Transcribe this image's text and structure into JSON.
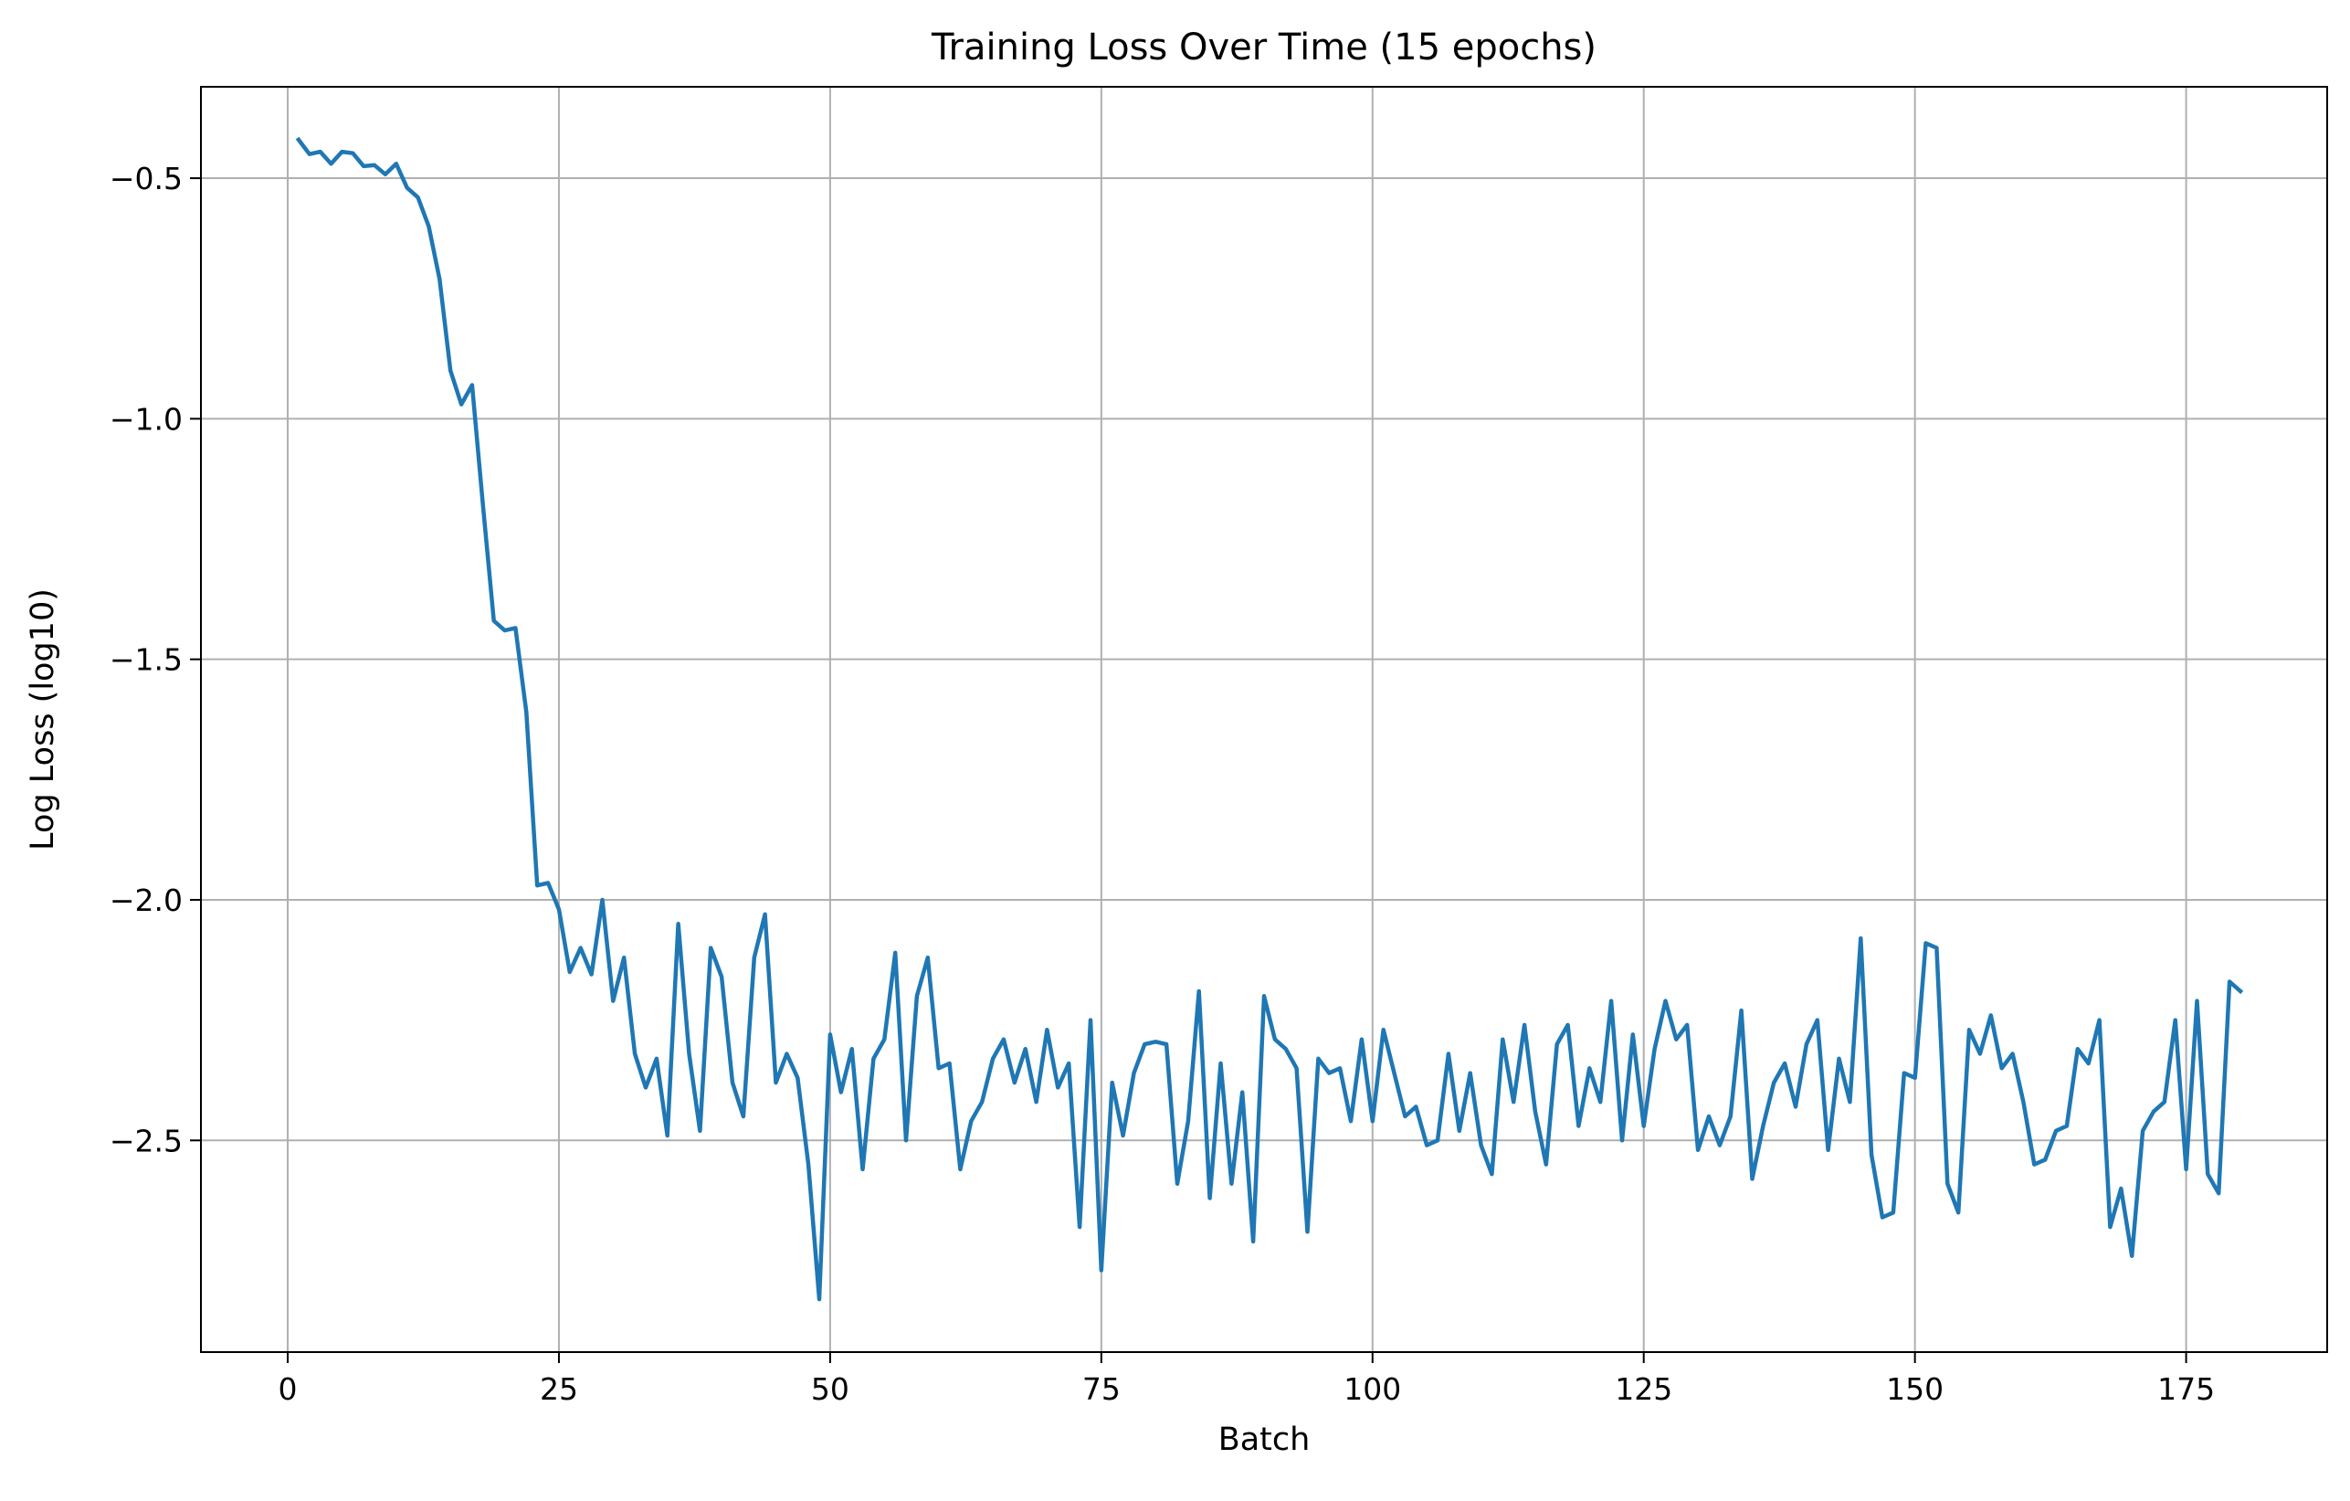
{
  "chart_data": {
    "type": "line",
    "title": "Training Loss Over Time (15 epochs)",
    "xlabel": "Batch",
    "ylabel": "Log Loss (log10)",
    "xlim": [
      -8,
      188
    ],
    "ylim": [
      -2.94,
      -0.31
    ],
    "xticks": [
      0,
      25,
      50,
      75,
      100,
      125,
      150,
      175
    ],
    "xtick_labels": [
      "0",
      "25",
      "50",
      "75",
      "100",
      "125",
      "150",
      "175"
    ],
    "yticks": [
      -0.5,
      -1.0,
      -1.5,
      -2.0,
      -2.5
    ],
    "ytick_labels": [
      "−0.5",
      "−1.0",
      "−1.5",
      "−2.0",
      "−2.5"
    ],
    "grid": true,
    "line_color": "#1f77b4",
    "series": [
      {
        "x": [
          1,
          2,
          3,
          4,
          5,
          6,
          7,
          8,
          9,
          10,
          11,
          12,
          13,
          14,
          15,
          16,
          17,
          18,
          19,
          20,
          21,
          22,
          23,
          24,
          25,
          26,
          27,
          28,
          29,
          30,
          31,
          32,
          33,
          34,
          35,
          36,
          37,
          38,
          39,
          40,
          41,
          42,
          43,
          44,
          45,
          46,
          47,
          48,
          49,
          50,
          51,
          52,
          53,
          54,
          55,
          56,
          57,
          58,
          59,
          60,
          61,
          62,
          63,
          64,
          65,
          66,
          67,
          68,
          69,
          70,
          71,
          72,
          73,
          74,
          75,
          76,
          77,
          78,
          79,
          80,
          81,
          82,
          83,
          84,
          85,
          86,
          87,
          88,
          89,
          90,
          91,
          92,
          93,
          94,
          95,
          96,
          97,
          98,
          99,
          100,
          101,
          102,
          103,
          104,
          105,
          106,
          107,
          108,
          109,
          110,
          111,
          112,
          113,
          114,
          115,
          116,
          117,
          118,
          119,
          120,
          121,
          122,
          123,
          124,
          125,
          126,
          127,
          128,
          129,
          130,
          131,
          132,
          133,
          134,
          135,
          136,
          137,
          138,
          139,
          140,
          141,
          142,
          143,
          144,
          145,
          146,
          147,
          148,
          149,
          150,
          151,
          152,
          153,
          154,
          155,
          156,
          157,
          158,
          159,
          160,
          161,
          162,
          163,
          164,
          165,
          166,
          167,
          168,
          169,
          170,
          171,
          172,
          173,
          174,
          175,
          176,
          177,
          178,
          179,
          180
        ],
        "values": [
          -0.42,
          -0.45,
          -0.445,
          -0.47,
          -0.445,
          -0.448,
          -0.475,
          -0.473,
          -0.492,
          -0.47,
          -0.52,
          -0.54,
          -0.6,
          -0.71,
          -0.9,
          -0.97,
          -0.93,
          -1.18,
          -1.42,
          -1.44,
          -1.435,
          -1.61,
          -1.97,
          -1.965,
          -2.02,
          -2.15,
          -2.1,
          -2.155,
          -2.0,
          -2.21,
          -2.12,
          -2.32,
          -2.39,
          -2.33,
          -2.49,
          -2.05,
          -2.32,
          -2.48,
          -2.1,
          -2.16,
          -2.38,
          -2.45,
          -2.12,
          -2.03,
          -2.38,
          -2.32,
          -2.37,
          -2.55,
          -2.83,
          -2.28,
          -2.4,
          -2.31,
          -2.56,
          -2.33,
          -2.29,
          -2.11,
          -2.5,
          -2.2,
          -2.12,
          -2.35,
          -2.34,
          -2.56,
          -2.46,
          -2.42,
          -2.33,
          -2.29,
          -2.38,
          -2.31,
          -2.42,
          -2.27,
          -2.39,
          -2.34,
          -2.68,
          -2.25,
          -2.77,
          -2.38,
          -2.49,
          -2.36,
          -2.3,
          -2.295,
          -2.3,
          -2.59,
          -2.46,
          -2.19,
          -2.62,
          -2.34,
          -2.59,
          -2.4,
          -2.71,
          -2.2,
          -2.29,
          -2.31,
          -2.35,
          -2.69,
          -2.33,
          -2.36,
          -2.35,
          -2.46,
          -2.29,
          -2.46,
          -2.27,
          -2.36,
          -2.45,
          -2.43,
          -2.51,
          -2.5,
          -2.32,
          -2.48,
          -2.36,
          -2.51,
          -2.57,
          -2.29,
          -2.42,
          -2.26,
          -2.44,
          -2.55,
          -2.3,
          -2.26,
          -2.47,
          -2.35,
          -2.42,
          -2.21,
          -2.5,
          -2.28,
          -2.47,
          -2.31,
          -2.21,
          -2.29,
          -2.26,
          -2.52,
          -2.45,
          -2.51,
          -2.45,
          -2.23,
          -2.58,
          -2.47,
          -2.38,
          -2.34,
          -2.43,
          -2.3,
          -2.25,
          -2.52,
          -2.33,
          -2.42,
          -2.08,
          -2.53,
          -2.66,
          -2.65,
          -2.36,
          -2.37,
          -2.09,
          -2.1,
          -2.59,
          -2.65,
          -2.27,
          -2.32,
          -2.24,
          -2.35,
          -2.32,
          -2.42,
          -2.55,
          -2.54,
          -2.48,
          -2.47,
          -2.31,
          -2.34,
          -2.25,
          -2.68,
          -2.6,
          -2.74,
          -2.48,
          -2.44,
          -2.42,
          -2.25,
          -2.56,
          -2.21,
          -2.57,
          -2.61,
          -2.17,
          -2.19
        ]
      }
    ]
  }
}
